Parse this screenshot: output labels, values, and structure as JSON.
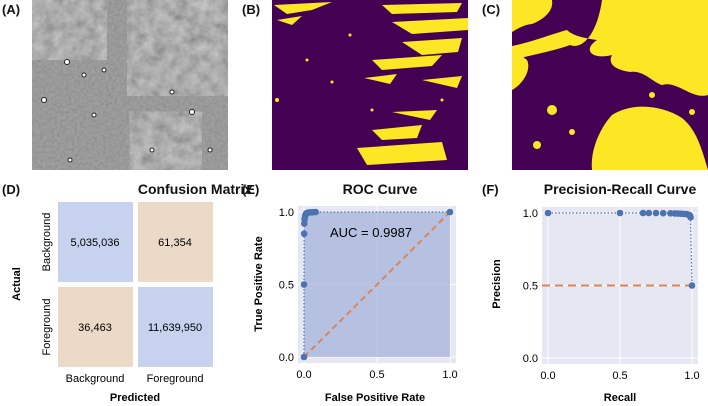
{
  "panels": {
    "a": {
      "label": "(A)"
    },
    "b": {
      "label": "(B)"
    },
    "c": {
      "label": "(C)"
    },
    "d": {
      "label": "(D)"
    },
    "e": {
      "label": "(E)"
    },
    "f": {
      "label": "(F)"
    }
  },
  "colors": {
    "mask_background": "#440154",
    "mask_foreground": "#fde725",
    "grid_background": "#e5e7f2",
    "point_blue": "#4c72b0",
    "dashed_orange": "#dd8452",
    "cm_correct": "#c7d3ee",
    "cm_wrong": "#ecdac8"
  },
  "chart_data": [
    {
      "type": "heatmap",
      "title": "Confusion Matrix",
      "xlabel": "Predicted",
      "ylabel": "Actual",
      "x_categories": [
        "Background",
        "Foreground"
      ],
      "y_categories": [
        "Background",
        "Foreground"
      ],
      "values": [
        [
          "5,035,036",
          "61,354"
        ],
        [
          "36,463",
          "11,639,950"
        ]
      ]
    },
    {
      "type": "line",
      "title": "ROC Curve",
      "xlabel": "False Positive Rate",
      "ylabel": "True Positive Rate",
      "xlim": [
        0,
        1
      ],
      "ylim": [
        0,
        1
      ],
      "xticks": [
        "0.0",
        "0.5",
        "1.0"
      ],
      "yticks": [
        "0.0",
        "0.5",
        "1.0"
      ],
      "annotation": "AUC = 0.9987",
      "points": [
        [
          0,
          0
        ],
        [
          0,
          0.5
        ],
        [
          0.001,
          0.85
        ],
        [
          0.002,
          0.92
        ],
        [
          0.004,
          0.95
        ],
        [
          0.007,
          0.97
        ],
        [
          0.01,
          0.98
        ],
        [
          0.015,
          0.99
        ],
        [
          0.02,
          0.993
        ],
        [
          0.03,
          0.996
        ],
        [
          0.045,
          0.998
        ],
        [
          0.06,
          0.999
        ],
        [
          0.08,
          1.0
        ],
        [
          1,
          1
        ]
      ],
      "diagonal": [
        [
          0,
          0
        ],
        [
          1,
          1
        ]
      ]
    },
    {
      "type": "line",
      "title": "Precision-Recall Curve",
      "xlabel": "Recall",
      "ylabel": "Precision",
      "xlim": [
        0,
        1
      ],
      "ylim": [
        0,
        1
      ],
      "xticks": [
        "0.0",
        "0.5",
        "1.0"
      ],
      "yticks": [
        "0.0",
        "0.5",
        "1.0"
      ],
      "points": [
        [
          0,
          1
        ],
        [
          0.5,
          1
        ],
        [
          0.66,
          1
        ],
        [
          0.7,
          1
        ],
        [
          0.75,
          1
        ],
        [
          0.8,
          0.999
        ],
        [
          0.85,
          0.998
        ],
        [
          0.88,
          0.997
        ],
        [
          0.9,
          0.996
        ],
        [
          0.92,
          0.995
        ],
        [
          0.94,
          0.994
        ],
        [
          0.96,
          0.993
        ],
        [
          0.97,
          0.99
        ],
        [
          0.985,
          0.985
        ],
        [
          0.99,
          0.97
        ],
        [
          1,
          0.5
        ]
      ],
      "baseline": 0.5
    }
  ]
}
